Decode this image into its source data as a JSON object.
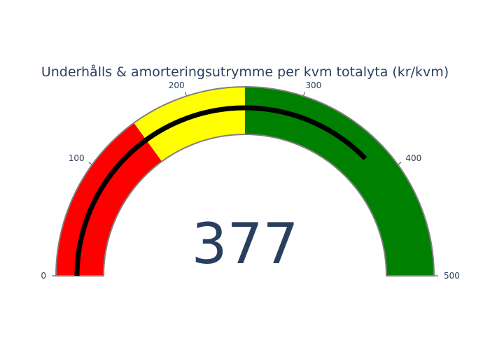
{
  "chart_data": {
    "type": "gauge",
    "title": "Underhålls & amorteringsutrymme per kvm totalyta (kr/kvm)",
    "value": 377,
    "range": [
      0,
      500
    ],
    "ticks": [
      0,
      100,
      200,
      300,
      400,
      500
    ],
    "steps": [
      {
        "range": [
          0,
          150
        ],
        "color": "#ff0000"
      },
      {
        "range": [
          150,
          250
        ],
        "color": "#ffff00"
      },
      {
        "range": [
          250,
          500
        ],
        "color": "#008000"
      }
    ],
    "bar_color": "#000000",
    "border_color": "#808080"
  }
}
